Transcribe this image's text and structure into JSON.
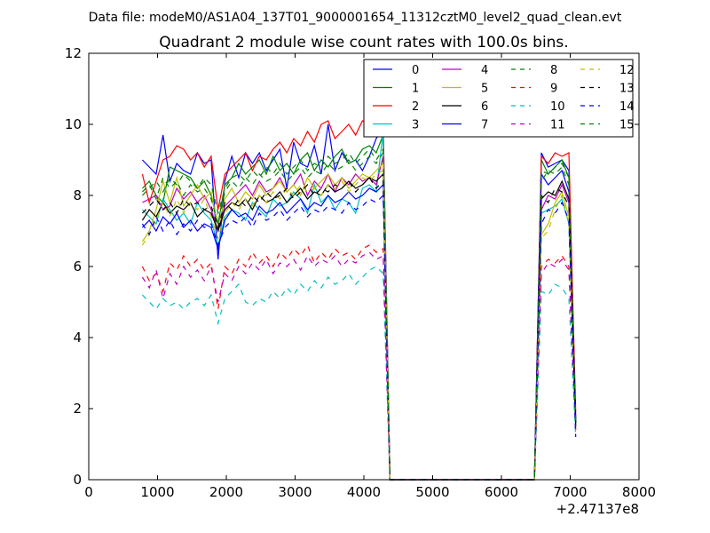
{
  "header": {
    "data_file": "Data file: modeM0/AS1A04_137T01_9000001654_11312cztM0_level2_quad_clean.evt"
  },
  "chart_data": {
    "type": "line",
    "title": "Quadrant 2 module wise count rates with 100.0s bins.",
    "xlabel": "",
    "ylabel": "",
    "x_offset_label": "+2.47137e8",
    "xlim": [
      0,
      8000
    ],
    "ylim": [
      0,
      12
    ],
    "xticks": [
      0,
      1000,
      2000,
      3000,
      4000,
      5000,
      6000,
      7000,
      8000
    ],
    "yticks": [
      0,
      2,
      4,
      6,
      8,
      10,
      12
    ],
    "grid": false,
    "legend_position": "top-right",
    "legend_columns": 4,
    "x_segment1": [
      780,
      880,
      980,
      1080,
      1180,
      1280,
      1380,
      1480,
      1580,
      1680,
      1780,
      1880,
      1980,
      2080,
      2180,
      2280,
      2380,
      2480,
      2580,
      2680,
      2780,
      2880,
      2980,
      3080,
      3180,
      3280,
      3380,
      3480,
      3580,
      3680,
      3780,
      3880,
      3980,
      4080,
      4180,
      4280
    ],
    "x_segment2": [
      4380,
      6480,
      6580,
      6680,
      6780,
      6880,
      6980,
      7080
    ],
    "series": [
      {
        "name": "0",
        "color": "#0000ff",
        "dash": "solid",
        "seg1": [
          9.0,
          8.8,
          8.6,
          9.7,
          8.4,
          8.9,
          8.7,
          8.6,
          9.2,
          8.9,
          9.0,
          6.2,
          8.4,
          9.1,
          8.5,
          9.2,
          8.9,
          9.2,
          8.7,
          9.0,
          9.3,
          8.2,
          9.5,
          8.9,
          8.8,
          9.4,
          8.6,
          10.0,
          8.7,
          9.2,
          8.9,
          9.0,
          8.7,
          9.1,
          9.6,
          9.9
        ],
        "seg2": [
          0.0,
          0.0,
          9.2,
          8.8,
          8.9,
          9.0,
          8.7,
          1.7
        ]
      },
      {
        "name": "1",
        "color": "#008000",
        "dash": "solid",
        "seg1": [
          8.2,
          8.4,
          8.0,
          7.8,
          8.8,
          8.7,
          8.6,
          8.5,
          8.2,
          8.4,
          8.0,
          7.2,
          8.3,
          8.5,
          8.9,
          8.6,
          8.8,
          9.0,
          8.6,
          9.1,
          8.7,
          8.9,
          8.6,
          9.0,
          9.2,
          8.7,
          9.0,
          8.8,
          9.1,
          9.3,
          8.9,
          9.0,
          9.3,
          9.4,
          9.2,
          9.7
        ],
        "seg2": [
          0.0,
          0.0,
          9.0,
          8.6,
          8.8,
          9.0,
          8.5,
          1.6
        ]
      },
      {
        "name": "2",
        "color": "#ff0000",
        "dash": "solid",
        "seg1": [
          8.6,
          7.8,
          8.4,
          9.0,
          9.1,
          9.4,
          9.3,
          9.0,
          9.2,
          8.8,
          9.1,
          7.6,
          8.6,
          8.8,
          9.0,
          9.2,
          8.7,
          9.1,
          9.0,
          9.3,
          9.5,
          9.2,
          9.6,
          9.4,
          9.8,
          9.5,
          10.0,
          10.1,
          9.6,
          9.8,
          10.0,
          9.7,
          10.1,
          10.0,
          10.3,
          10.2
        ],
        "seg2": [
          0.0,
          0.0,
          9.1,
          8.9,
          9.2,
          9.1,
          9.2,
          1.9
        ]
      },
      {
        "name": "3",
        "color": "#00bfbf",
        "dash": "solid",
        "seg1": [
          7.6,
          7.4,
          7.2,
          7.9,
          7.6,
          7.3,
          7.5,
          7.2,
          7.8,
          7.5,
          7.3,
          6.6,
          7.4,
          7.6,
          7.5,
          7.3,
          7.8,
          7.6,
          7.4,
          7.9,
          7.7,
          7.8,
          8.1,
          7.9,
          7.5,
          8.3,
          7.8,
          8.0,
          7.6,
          7.9,
          7.8,
          7.5,
          8.2,
          8.3,
          8.1,
          9.8
        ],
        "seg2": [
          0.0,
          0.0,
          7.5,
          7.6,
          7.7,
          7.9,
          7.2,
          1.5
        ]
      },
      {
        "name": "4",
        "color": "#bf00bf",
        "dash": "solid",
        "seg1": [
          7.8,
          7.9,
          8.0,
          7.6,
          7.7,
          8.2,
          7.9,
          8.1,
          7.8,
          8.0,
          7.6,
          7.0,
          7.7,
          7.9,
          8.1,
          8.3,
          8.0,
          8.4,
          8.1,
          8.2,
          8.5,
          8.1,
          8.3,
          8.6,
          8.0,
          8.4,
          8.2,
          8.6,
          8.1,
          8.5,
          8.3,
          8.6,
          8.4,
          8.5,
          8.3,
          9.1
        ],
        "seg2": [
          0.0,
          0.0,
          7.6,
          8.0,
          7.9,
          8.3,
          7.8,
          1.6
        ]
      },
      {
        "name": "5",
        "color": "#bfbf00",
        "dash": "solid",
        "seg1": [
          6.7,
          7.0,
          7.6,
          8.4,
          7.8,
          8.5,
          7.7,
          8.0,
          8.3,
          7.9,
          8.1,
          7.1,
          7.9,
          8.2,
          7.8,
          8.1,
          7.9,
          8.3,
          8.0,
          8.2,
          8.4,
          8.1,
          8.3,
          8.0,
          8.5,
          8.2,
          8.4,
          8.6,
          8.3,
          8.5,
          8.2,
          8.4,
          8.6,
          8.5,
          8.7,
          8.9
        ],
        "seg2": [
          0.0,
          0.0,
          6.9,
          7.2,
          7.8,
          8.1,
          7.4,
          1.6
        ]
      },
      {
        "name": "6",
        "color": "#000000",
        "dash": "solid",
        "seg1": [
          7.3,
          7.6,
          7.4,
          7.8,
          7.5,
          7.7,
          7.6,
          7.8,
          7.4,
          7.6,
          7.5,
          7.0,
          7.6,
          7.8,
          7.7,
          7.9,
          7.6,
          8.0,
          7.8,
          7.9,
          8.1,
          7.8,
          8.0,
          8.2,
          7.9,
          8.1,
          8.0,
          8.3,
          8.1,
          8.2,
          8.4,
          8.2,
          8.3,
          8.5,
          8.4,
          8.6
        ],
        "seg2": [
          0.0,
          0.0,
          7.9,
          8.1,
          8.0,
          8.4,
          7.9,
          1.5
        ]
      },
      {
        "name": "7",
        "color": "#0000ff",
        "dash": "solid",
        "seg1": [
          7.1,
          7.3,
          7.0,
          7.4,
          7.2,
          7.5,
          7.1,
          7.3,
          7.0,
          7.2,
          7.1,
          6.5,
          7.3,
          7.6,
          7.4,
          7.5,
          7.3,
          7.7,
          7.5,
          7.6,
          7.8,
          7.5,
          7.7,
          7.9,
          7.6,
          7.8,
          7.7,
          8.0,
          7.8,
          7.9,
          8.1,
          7.9,
          8.0,
          8.2,
          8.1,
          8.3
        ],
        "seg2": [
          0.0,
          0.0,
          8.6,
          8.3,
          8.5,
          8.7,
          8.1,
          1.7
        ]
      },
      {
        "name": "8",
        "color": "#008000",
        "dash": "dashed",
        "seg1": [
          8.1,
          8.3,
          7.9,
          8.5,
          8.2,
          8.4,
          8.0,
          8.3,
          8.1,
          8.2,
          7.9,
          7.2,
          8.1,
          8.4,
          8.2,
          8.5,
          8.3,
          8.6,
          8.4,
          8.5,
          8.7,
          8.4,
          8.6,
          8.8,
          8.5,
          8.7,
          8.6,
          8.9,
          8.7,
          8.8,
          9.0,
          8.7,
          8.9,
          9.1,
          8.9,
          9.2
        ],
        "seg2": [
          0.0,
          0.0,
          8.7,
          8.6,
          8.8,
          8.9,
          8.5,
          1.6
        ]
      },
      {
        "name": "9",
        "color": "#ff0000",
        "dash": "dashed",
        "seg1": [
          6.0,
          5.6,
          5.8,
          5.3,
          6.1,
          5.9,
          6.3,
          6.0,
          6.2,
          5.9,
          6.1,
          4.8,
          6.0,
          5.8,
          6.2,
          6.0,
          6.4,
          6.1,
          6.3,
          6.0,
          6.4,
          6.2,
          6.5,
          6.3,
          6.6,
          6.1,
          6.4,
          6.2,
          6.5,
          6.3,
          6.4,
          6.2,
          6.5,
          6.6,
          6.4,
          6.5
        ],
        "seg2": [
          0.0,
          0.0,
          6.0,
          6.2,
          6.1,
          6.3,
          6.0,
          1.4
        ]
      },
      {
        "name": "10",
        "color": "#00bfbf",
        "dash": "dashed",
        "seg1": [
          5.2,
          5.0,
          4.8,
          5.1,
          4.9,
          5.0,
          4.8,
          5.0,
          5.1,
          4.9,
          5.2,
          4.4,
          5.1,
          5.3,
          5.5,
          5.0,
          4.9,
          5.1,
          5.0,
          5.3,
          5.1,
          5.4,
          5.2,
          5.5,
          5.3,
          5.6,
          5.4,
          5.7,
          5.5,
          5.6,
          5.8,
          5.5,
          5.7,
          5.9,
          6.0,
          5.8
        ],
        "seg2": [
          0.0,
          0.0,
          5.3,
          5.2,
          5.5,
          5.4,
          5.1,
          1.2
        ]
      },
      {
        "name": "11",
        "color": "#bf00bf",
        "dash": "dashed",
        "seg1": [
          5.7,
          5.4,
          5.9,
          5.1,
          5.8,
          5.5,
          6.0,
          5.7,
          5.9,
          5.6,
          6.0,
          5.0,
          5.8,
          5.6,
          6.0,
          5.8,
          6.1,
          5.9,
          6.2,
          5.8,
          6.1,
          6.0,
          6.2,
          5.9,
          6.3,
          6.0,
          6.2,
          6.1,
          6.3,
          6.0,
          6.2,
          6.1,
          6.3,
          6.4,
          6.2,
          6.3
        ],
        "seg2": [
          0.0,
          0.0,
          5.8,
          6.1,
          6.0,
          6.2,
          5.9,
          1.3
        ]
      },
      {
        "name": "12",
        "color": "#bfbf00",
        "dash": "dashed",
        "seg1": [
          6.6,
          6.9,
          7.3,
          7.8,
          7.4,
          7.9,
          7.5,
          7.8,
          7.6,
          7.9,
          7.4,
          6.8,
          7.5,
          7.8,
          7.6,
          7.9,
          7.7,
          8.0,
          7.8,
          8.1,
          7.9,
          8.2,
          8.0,
          8.3,
          8.1,
          8.2,
          8.0,
          8.3,
          8.2,
          8.4,
          8.1,
          8.3,
          8.5,
          8.4,
          8.6,
          8.7
        ],
        "seg2": [
          0.0,
          0.0,
          6.8,
          7.0,
          7.6,
          8.0,
          7.2,
          1.5
        ]
      },
      {
        "name": "13",
        "color": "#000000",
        "dash": "dashed",
        "seg1": [
          7.5,
          7.7,
          7.9,
          7.6,
          7.8,
          7.5,
          7.9,
          7.7,
          7.8,
          7.6,
          7.7,
          7.1,
          7.8,
          7.6,
          7.9,
          7.7,
          8.0,
          7.8,
          8.1,
          7.9,
          8.0,
          8.2,
          7.9,
          8.1,
          8.3,
          8.0,
          8.2,
          8.1,
          8.3,
          8.2,
          8.4,
          8.1,
          8.3,
          8.5,
          8.2,
          8.4
        ],
        "seg2": [
          0.0,
          0.0,
          8.0,
          7.8,
          8.2,
          8.1,
          7.7,
          1.6
        ]
      },
      {
        "name": "14",
        "color": "#0000ff",
        "dash": "dashed",
        "seg1": [
          7.2,
          6.9,
          7.4,
          7.0,
          7.3,
          6.9,
          7.2,
          7.0,
          7.3,
          7.1,
          7.2,
          6.6,
          7.1,
          7.3,
          7.2,
          7.4,
          7.1,
          7.5,
          7.3,
          7.4,
          7.6,
          7.3,
          7.5,
          7.7,
          7.4,
          7.6,
          7.5,
          7.7,
          7.6,
          7.5,
          7.8,
          7.6,
          7.7,
          7.9,
          7.8,
          8.0
        ],
        "seg2": [
          0.0,
          0.0,
          7.2,
          7.6,
          7.5,
          7.8,
          7.3,
          1.2
        ]
      },
      {
        "name": "15",
        "color": "#008000",
        "dash": "dashed",
        "seg1": [
          8.0,
          8.2,
          8.4,
          8.1,
          8.5,
          8.3,
          8.6,
          8.4,
          8.2,
          8.5,
          8.3,
          7.5,
          8.2,
          8.5,
          8.6,
          8.4,
          8.7,
          8.5,
          8.8,
          8.6,
          8.9,
          8.6,
          8.8,
          9.0,
          8.7,
          8.9,
          8.8,
          9.1,
          8.9,
          9.0,
          9.2,
          8.9,
          9.1,
          9.3,
          9.0,
          9.3
        ],
        "seg2": [
          0.0,
          0.0,
          8.4,
          8.7,
          8.6,
          8.8,
          8.3,
          1.5
        ]
      }
    ]
  }
}
